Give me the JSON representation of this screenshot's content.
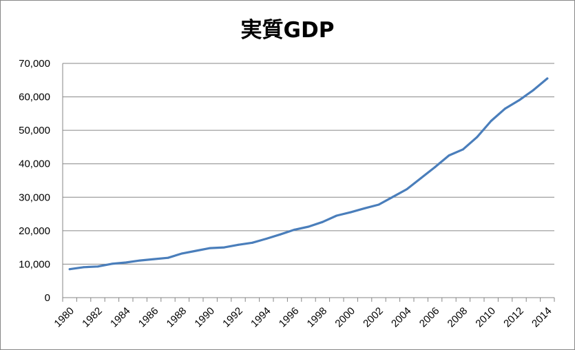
{
  "chart_data": {
    "type": "line",
    "title": "実質GDP",
    "xlabel": "",
    "ylabel": "",
    "ylim": [
      0,
      70000
    ],
    "y_ticks": [
      0,
      10000,
      20000,
      30000,
      40000,
      50000,
      60000,
      70000
    ],
    "y_tick_labels": [
      "0",
      "10,000",
      "20,000",
      "30,000",
      "40,000",
      "50,000",
      "60,000",
      "70,000"
    ],
    "x_tick_labels": [
      "1980",
      "1982",
      "1984",
      "1986",
      "1988",
      "1990",
      "1992",
      "1994",
      "1996",
      "1998",
      "2000",
      "2002",
      "2004",
      "2006",
      "2008",
      "2010",
      "2012",
      "2014"
    ],
    "grid": true,
    "legend": "none",
    "line_color": "#4a7ebb",
    "x": [
      1980,
      1981,
      1982,
      1983,
      1984,
      1985,
      1986,
      1987,
      1988,
      1989,
      1990,
      1991,
      1992,
      1993,
      1994,
      1995,
      1996,
      1997,
      1998,
      1999,
      2000,
      2001,
      2002,
      2003,
      2004,
      2005,
      2006,
      2007,
      2008,
      2009,
      2010,
      2011,
      2012,
      2013,
      2014
    ],
    "series": [
      {
        "values": [
          8500,
          9100,
          9300,
          10100,
          10500,
          11100,
          11500,
          11900,
          13200,
          14000,
          14800,
          15000,
          15800,
          16400,
          17600,
          18900,
          20300,
          21200,
          22600,
          24500,
          25500,
          26700,
          27800,
          30100,
          32400,
          35700,
          39000,
          42500,
          44300,
          48000,
          52800,
          56500,
          59000,
          62000,
          65500
        ]
      }
    ]
  }
}
